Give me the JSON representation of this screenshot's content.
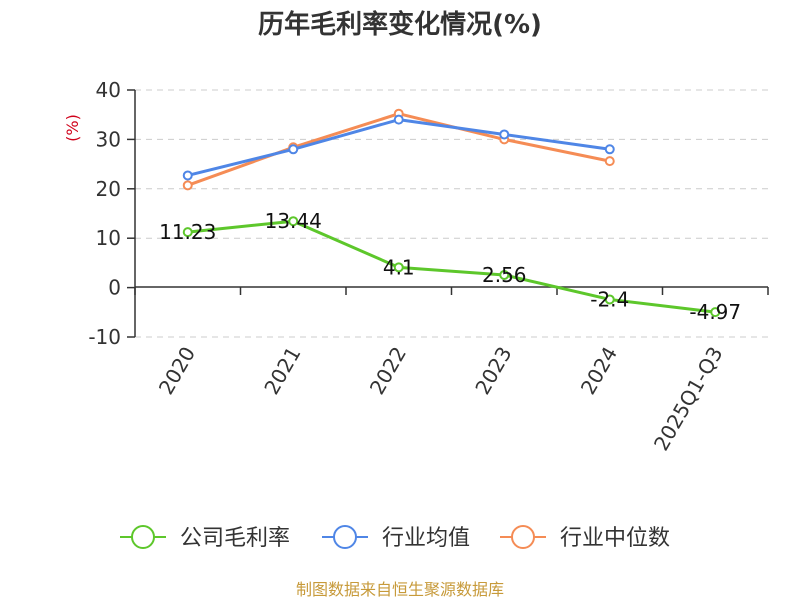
{
  "chart_data": {
    "type": "line",
    "title": "历年毛利率变化情况(%)",
    "ylabel": "(%)",
    "xlabel": "",
    "categories": [
      "2020",
      "2021",
      "2022",
      "2023",
      "2024",
      "2025Q1-Q3"
    ],
    "yticks": [
      40,
      30,
      20,
      10,
      0,
      -10
    ],
    "ylim": [
      -10,
      40
    ],
    "grid": true,
    "legend_position": "bottom",
    "series": [
      {
        "name": "公司毛利率",
        "color": "#5dc72b",
        "values": [
          11.23,
          13.44,
          4.1,
          2.56,
          -2.4,
          -4.97
        ],
        "labels": [
          "11.23",
          "13.44",
          "4.1",
          "2.56",
          "-2.4",
          "-4.97"
        ]
      },
      {
        "name": "行业均值",
        "color": "#4f86e6",
        "values": [
          22.7,
          28.0,
          34.0,
          31.0,
          28.0,
          null
        ]
      },
      {
        "name": "行业中位数",
        "color": "#f58c55",
        "values": [
          20.7,
          28.4,
          35.2,
          30.0,
          25.6,
          null
        ]
      }
    ],
    "source": "制图数据来自恒生聚源数据库"
  }
}
